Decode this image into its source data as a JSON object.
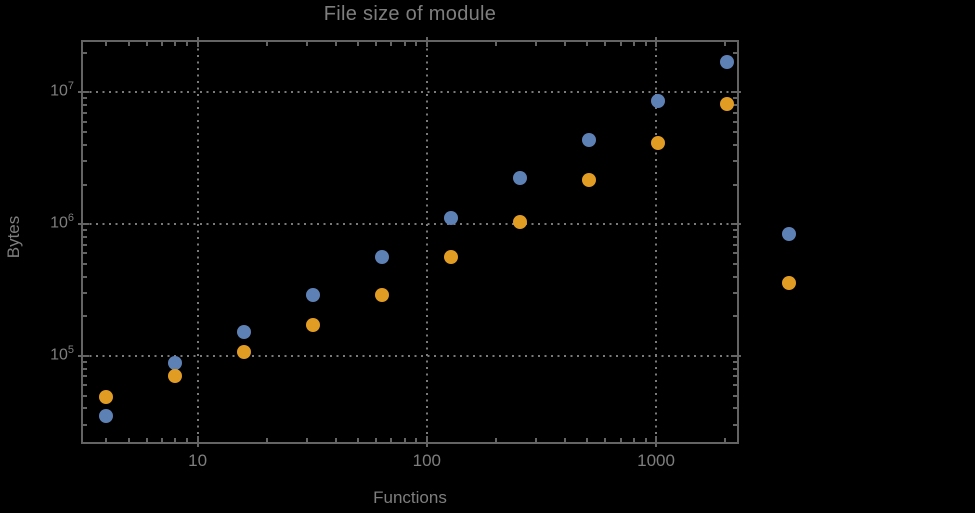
{
  "window": {
    "background": "#000000"
  },
  "chart_data": {
    "type": "scatter",
    "title": "File size of module",
    "xlabel": "Functions",
    "ylabel": "Bytes",
    "x_scale": "log",
    "y_scale": "log",
    "xlim": [
      3.1,
      2300
    ],
    "ylim": [
      21500,
      25000000
    ],
    "grid": "dotted lines at decade ticks, framed plot with inward minor ticks",
    "legend_position": "outside-right",
    "x": [
      4,
      8,
      16,
      32,
      64,
      128,
      256,
      512,
      1024,
      2048
    ],
    "series": [
      {
        "name": "",
        "color": "#5e81b5",
        "values": [
          35000,
          88000,
          153000,
          290000,
          569000,
          1120000,
          2240000,
          4330000,
          8670000,
          17100000
        ]
      },
      {
        "name": "",
        "color": "#e19c24",
        "values": [
          49000,
          70000,
          108000,
          172000,
          290000,
          560000,
          1040000,
          2160000,
          4110000,
          8240000
        ]
      }
    ],
    "x_ticks": [
      {
        "value": 10,
        "label": "10"
      },
      {
        "value": 100,
        "label": "100"
      },
      {
        "value": 1000,
        "label": "1000"
      }
    ],
    "y_ticks": [
      {
        "value": 100000,
        "base": "10",
        "exp": "5"
      },
      {
        "value": 1000000,
        "base": "10",
        "exp": "6"
      },
      {
        "value": 10000000,
        "base": "10",
        "exp": "7"
      }
    ],
    "legend": {
      "markers": [
        {
          "color": "#5e81b5",
          "label": ""
        },
        {
          "color": "#e19c24",
          "label": ""
        }
      ]
    },
    "colors": {
      "text": "#7e7e7e",
      "frame": "#646464",
      "grid": "#7a7a7a",
      "background": "#000000"
    }
  }
}
